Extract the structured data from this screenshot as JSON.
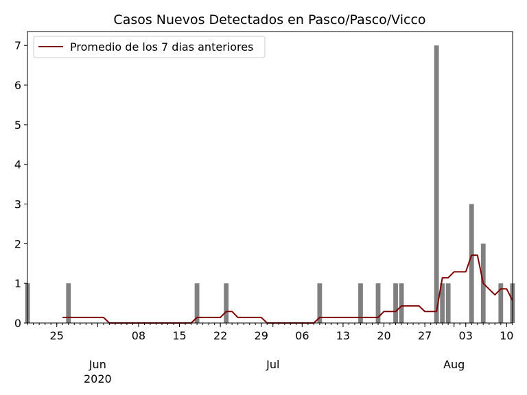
{
  "chart_data": {
    "type": "bar",
    "title": "Casos Nuevos Detectados en Pasco/Pasco/Vicco",
    "xlabel": "",
    "ylabel": "",
    "ylim": [
      0,
      7.35
    ],
    "yticks": [
      0,
      1,
      2,
      3,
      4,
      5,
      6,
      7
    ],
    "xlim": [
      "2020-05-20",
      "2020-08-11"
    ],
    "x_tick_labels": [
      {
        "date": "2020-05-25",
        "label": "25"
      },
      {
        "date": "2020-06-08",
        "label": "08"
      },
      {
        "date": "2020-06-15",
        "label": "15"
      },
      {
        "date": "2020-06-22",
        "label": "22"
      },
      {
        "date": "2020-06-29",
        "label": "29"
      },
      {
        "date": "2020-07-06",
        "label": "06"
      },
      {
        "date": "2020-07-13",
        "label": "13"
      },
      {
        "date": "2020-07-20",
        "label": "20"
      },
      {
        "date": "2020-07-27",
        "label": "27"
      },
      {
        "date": "2020-08-03",
        "label": "03"
      },
      {
        "date": "2020-08-10",
        "label": "10"
      }
    ],
    "x_month_labels": [
      {
        "date": "2020-06-01",
        "label": "Jun",
        "sublabel": "2020"
      },
      {
        "date": "2020-07-01",
        "label": "Jul",
        "sublabel": ""
      },
      {
        "date": "2020-08-01",
        "label": "Aug",
        "sublabel": ""
      }
    ],
    "grid": false,
    "legend_placement": "top-left",
    "bar_color": "#808080",
    "line_color": "#800000",
    "bars": [
      {
        "date": "2020-05-20",
        "value": 1
      },
      {
        "date": "2020-05-27",
        "value": 1
      },
      {
        "date": "2020-06-18",
        "value": 1
      },
      {
        "date": "2020-06-23",
        "value": 1
      },
      {
        "date": "2020-07-09",
        "value": 1
      },
      {
        "date": "2020-07-16",
        "value": 1
      },
      {
        "date": "2020-07-19",
        "value": 1
      },
      {
        "date": "2020-07-22",
        "value": 1
      },
      {
        "date": "2020-07-23",
        "value": 1
      },
      {
        "date": "2020-07-29",
        "value": 7
      },
      {
        "date": "2020-07-30",
        "value": 1
      },
      {
        "date": "2020-07-31",
        "value": 1
      },
      {
        "date": "2020-08-04",
        "value": 3
      },
      {
        "date": "2020-08-06",
        "value": 2
      },
      {
        "date": "2020-08-09",
        "value": 1
      },
      {
        "date": "2020-08-11",
        "value": 1
      }
    ],
    "series": [
      {
        "name": "Promedio de los 7 dias anteriores",
        "points": [
          {
            "date": "2020-05-26",
            "value": 0.14
          },
          {
            "date": "2020-06-02",
            "value": 0.14
          },
          {
            "date": "2020-06-03",
            "value": 0
          },
          {
            "date": "2020-06-17",
            "value": 0
          },
          {
            "date": "2020-06-18",
            "value": 0.14
          },
          {
            "date": "2020-06-22",
            "value": 0.14
          },
          {
            "date": "2020-06-23",
            "value": 0.29
          },
          {
            "date": "2020-06-24",
            "value": 0.29
          },
          {
            "date": "2020-06-25",
            "value": 0.14
          },
          {
            "date": "2020-06-29",
            "value": 0.14
          },
          {
            "date": "2020-06-30",
            "value": 0
          },
          {
            "date": "2020-07-08",
            "value": 0
          },
          {
            "date": "2020-07-09",
            "value": 0.14
          },
          {
            "date": "2020-07-19",
            "value": 0.14
          },
          {
            "date": "2020-07-20",
            "value": 0.29
          },
          {
            "date": "2020-07-22",
            "value": 0.29
          },
          {
            "date": "2020-07-23",
            "value": 0.43
          },
          {
            "date": "2020-07-26",
            "value": 0.43
          },
          {
            "date": "2020-07-27",
            "value": 0.29
          },
          {
            "date": "2020-07-29",
            "value": 0.29
          },
          {
            "date": "2020-07-30",
            "value": 1.14
          },
          {
            "date": "2020-07-31",
            "value": 1.14
          },
          {
            "date": "2020-08-01",
            "value": 1.29
          },
          {
            "date": "2020-08-03",
            "value": 1.29
          },
          {
            "date": "2020-08-04",
            "value": 1.71
          },
          {
            "date": "2020-08-05",
            "value": 1.71
          },
          {
            "date": "2020-08-06",
            "value": 1.0
          },
          {
            "date": "2020-08-08",
            "value": 0.71
          },
          {
            "date": "2020-08-09",
            "value": 0.86
          },
          {
            "date": "2020-08-10",
            "value": 0.86
          },
          {
            "date": "2020-08-11",
            "value": 0.57
          }
        ]
      }
    ]
  }
}
